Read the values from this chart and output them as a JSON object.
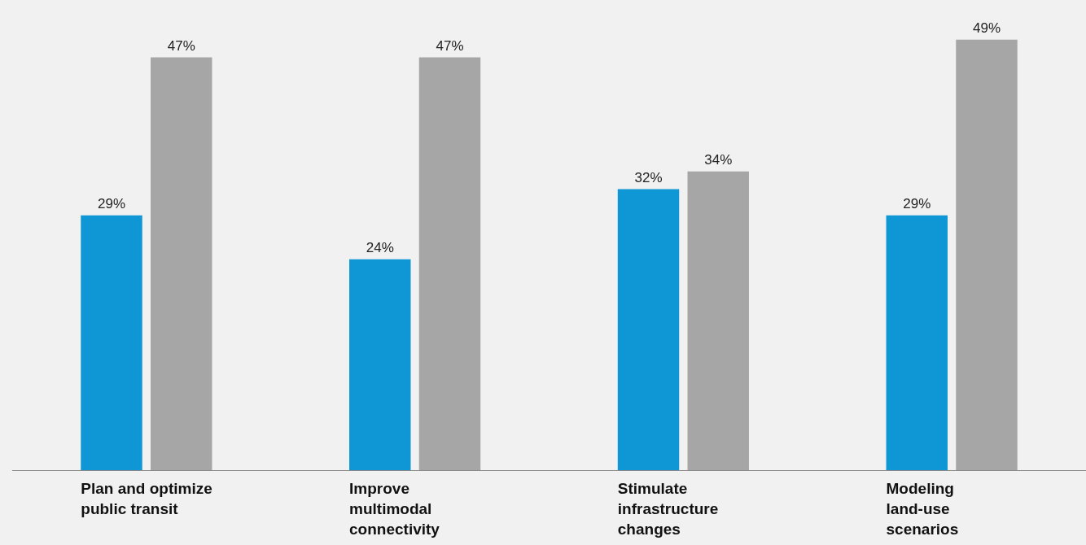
{
  "chart_data": {
    "type": "bar",
    "categories": [
      "Plan and optimize public transit",
      "Improve multimodal connectivity",
      "Stimulate infrastructure changes",
      "Modeling land-use scenarios"
    ],
    "series": [
      {
        "color": "#0f96d4",
        "values": [
          29,
          24,
          32,
          29
        ],
        "value_labels": [
          "29%",
          "24%",
          "32%",
          "29%"
        ]
      },
      {
        "color": "#a6a6a6",
        "values": [
          47,
          47,
          34,
          49
        ],
        "value_labels": [
          "47%",
          "47%",
          "34%",
          "49%"
        ]
      }
    ],
    "legend": false,
    "grid": false
  }
}
